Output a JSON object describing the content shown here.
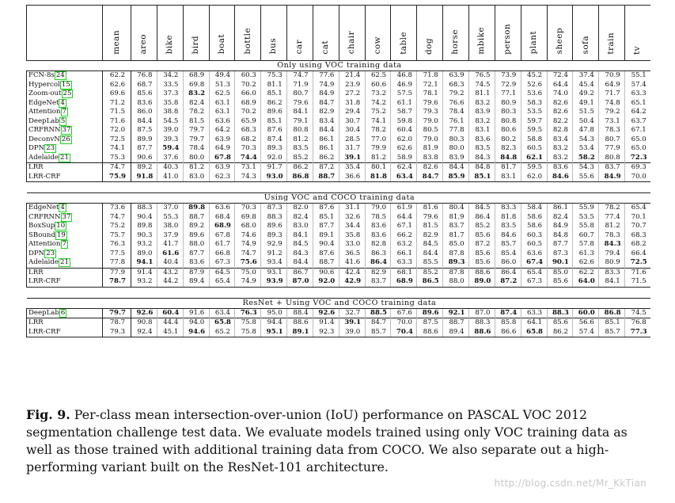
{
  "columns": [
    "mean",
    "areo",
    "bike",
    "bird",
    "boat",
    "bottle",
    "bus",
    "car",
    "cat",
    "chair",
    "cow",
    "table",
    "dog",
    "horse",
    "mbike",
    "person",
    "plant",
    "sheep",
    "sofa",
    "train",
    "tv"
  ],
  "sections": [
    {
      "title": "Only using VOC training data",
      "rows": [
        {
          "method": "FCN-8s",
          "cite": "24",
          "values": [
            "62.2",
            "76.8",
            "34.2",
            "68.9",
            "49.4",
            "60.3",
            "75.3",
            "74.7",
            "77.6",
            "21.4",
            "62.5",
            "46.8",
            "71.8",
            "63.9",
            "76.5",
            "73.9",
            "45.2",
            "72.4",
            "37.4",
            "70.9",
            "55.1"
          ],
          "bold": []
        },
        {
          "method": "Hypercol",
          "cite": "15",
          "values": [
            "62.6",
            "68.7",
            "33.5",
            "69.8",
            "51.3",
            "70.2",
            "81.1",
            "71.9",
            "74.9",
            "23.9",
            "60.6",
            "46.9",
            "72.1",
            "68.3",
            "74.5",
            "72.9",
            "52.6",
            "64.4",
            "45.4",
            "64.9",
            "57.4"
          ],
          "bold": []
        },
        {
          "method": "Zoom-out",
          "cite": "25",
          "values": [
            "69.6",
            "85.6",
            "37.3",
            "83.2",
            "62.5",
            "66.0",
            "85.1",
            "80.7",
            "84.9",
            "27.2",
            "73.2",
            "57.5",
            "78.1",
            "79.2",
            "81.1",
            "77.1",
            "53.6",
            "74.0",
            "49.2",
            "71.7",
            "63.3"
          ],
          "bold": [
            3
          ]
        },
        {
          "method": "EdgeNet",
          "cite": "4",
          "values": [
            "71.2",
            "83.6",
            "35.8",
            "82.4",
            "63.1",
            "68.9",
            "86.2",
            "79.6",
            "84.7",
            "31.8",
            "74.2",
            "61.1",
            "79.6",
            "76.6",
            "83.2",
            "80.9",
            "58.3",
            "82.6",
            "49.1",
            "74.8",
            "65.1"
          ],
          "bold": []
        },
        {
          "method": "Attention",
          "cite": "7",
          "values": [
            "71.5",
            "86.0",
            "38.8",
            "78.2",
            "63.1",
            "70.2",
            "89.6",
            "84.1",
            "82.9",
            "29.4",
            "75.2",
            "58.7",
            "79.3",
            "78.4",
            "83.9",
            "80.3",
            "53.5",
            "82.6",
            "51.5",
            "79.2",
            "64.2"
          ],
          "bold": []
        },
        {
          "method": "DeepLab",
          "cite": "5",
          "values": [
            "71.6",
            "84.4",
            "54.5",
            "81.5",
            "63.6",
            "65.9",
            "85.1",
            "79.1",
            "83.4",
            "30.7",
            "74.1",
            "59.8",
            "79.0",
            "76.1",
            "83.2",
            "80.8",
            "59.7",
            "82.2",
            "50.4",
            "73.1",
            "63.7"
          ],
          "bold": []
        },
        {
          "method": "CRFRNN",
          "cite": "37",
          "values": [
            "72.0",
            "87.5",
            "39.0",
            "79.7",
            "64.2",
            "68.3",
            "87.6",
            "80.8",
            "84.4",
            "30.4",
            "78.2",
            "60.4",
            "80.5",
            "77.8",
            "83.1",
            "80.6",
            "59.5",
            "82.8",
            "47.8",
            "78.3",
            "67.1"
          ],
          "bold": []
        },
        {
          "method": "DeconvN",
          "cite": "26",
          "values": [
            "72.5",
            "89.9",
            "39.3",
            "79.7",
            "63.9",
            "68.2",
            "87.4",
            "81.2",
            "86.1",
            "28.5",
            "77.0",
            "62.0",
            "79.0",
            "80.3",
            "83.6",
            "80.2",
            "58.8",
            "83.4",
            "54.3",
            "80.7",
            "65.0"
          ],
          "bold": []
        },
        {
          "method": "DPN",
          "cite": "23",
          "values": [
            "74.1",
            "87.7",
            "59.4",
            "78.4",
            "64.9",
            "70.3",
            "89.3",
            "83.5",
            "86.1",
            "31.7",
            "79.9",
            "62.6",
            "81.9",
            "80.0",
            "83.5",
            "82.3",
            "60.5",
            "83.2",
            "53.4",
            "77.9",
            "65.0"
          ],
          "bold": [
            2
          ]
        },
        {
          "method": "Adelaide",
          "cite": "21",
          "values": [
            "75.3",
            "90.6",
            "37.6",
            "80.0",
            "67.8",
            "74.4",
            "92.0",
            "85.2",
            "86.2",
            "39.1",
            "81.2",
            "58.9",
            "83.8",
            "83.9",
            "84.3",
            "84.8",
            "62.1",
            "83.2",
            "58.2",
            "80.8",
            "72.3"
          ],
          "bold": [
            4,
            5,
            9,
            15,
            16,
            18,
            20
          ]
        },
        {
          "method": "LRR",
          "cite": "",
          "values": [
            "74.7",
            "89.2",
            "40.3",
            "81.2",
            "63.9",
            "73.1",
            "91.7",
            "86.2",
            "87.2",
            "35.4",
            "80.1",
            "62.4",
            "82.6",
            "84.4",
            "84.8",
            "81.7",
            "59.5",
            "83.6",
            "54.3",
            "83.7",
            "69.3"
          ],
          "bold": []
        },
        {
          "method": "LRR-CRF",
          "cite": "",
          "values": [
            "75.9",
            "91.8",
            "41.0",
            "83.0",
            "62.3",
            "74.3",
            "93.0",
            "86.8",
            "88.7",
            "36.6",
            "81.8",
            "63.4",
            "84.7",
            "85.9",
            "85.1",
            "83.1",
            "62.0",
            "84.6",
            "55.6",
            "84.9",
            "70.0"
          ],
          "bold": [
            0,
            1,
            6,
            7,
            8,
            10,
            11,
            12,
            13,
            14,
            17,
            19
          ]
        }
      ]
    },
    {
      "title": "Using VOC and COCO training data",
      "rows": [
        {
          "method": "EdgeNet",
          "cite": "4",
          "values": [
            "73.6",
            "88.3",
            "37.0",
            "89.8",
            "63.6",
            "70.3",
            "87.3",
            "82.0",
            "87.6",
            "31.1",
            "79.0",
            "61.9",
            "81.6",
            "80.4",
            "84.5",
            "83.3",
            "58.4",
            "86.1",
            "55.9",
            "78.2",
            "65.4"
          ],
          "bold": [
            3
          ]
        },
        {
          "method": "CRFRNN",
          "cite": "37",
          "values": [
            "74.7",
            "90.4",
            "55.3",
            "88.7",
            "68.4",
            "69.8",
            "88.3",
            "82.4",
            "85.1",
            "32.6",
            "78.5",
            "64.4",
            "79.6",
            "81.9",
            "86.4",
            "81.8",
            "58.6",
            "82.4",
            "53.5",
            "77.4",
            "70.1"
          ],
          "bold": []
        },
        {
          "method": "BoxSup",
          "cite": "10",
          "values": [
            "75.2",
            "89.8",
            "38.0",
            "89.2",
            "68.9",
            "68.0",
            "89.6",
            "83.0",
            "87.7",
            "34.4",
            "83.6",
            "67.1",
            "81.5",
            "83.7",
            "85.2",
            "83.5",
            "58.6",
            "84.9",
            "55.8",
            "81.2",
            "70.7"
          ],
          "bold": [
            4
          ]
        },
        {
          "method": "SBound",
          "cite": "19",
          "values": [
            "75.7",
            "90.3",
            "37.9",
            "89.6",
            "67.8",
            "74.6",
            "89.3",
            "84.1",
            "89.1",
            "35.8",
            "83.6",
            "66.2",
            "82.9",
            "81.7",
            "85.6",
            "84.6",
            "60.3",
            "84.8",
            "60.7",
            "78.3",
            "68.3"
          ],
          "bold": []
        },
        {
          "method": "Attention",
          "cite": "7",
          "values": [
            "76.3",
            "93.2",
            "41.7",
            "88.0",
            "61.7",
            "74.9",
            "92.9",
            "84.5",
            "90.4",
            "33.0",
            "82.8",
            "63.2",
            "84.5",
            "85.0",
            "87.2",
            "85.7",
            "60.5",
            "87.7",
            "57.8",
            "84.3",
            "68.2"
          ],
          "bold": [
            19
          ]
        },
        {
          "method": "DPN",
          "cite": "23",
          "values": [
            "77.5",
            "89.0",
            "61.6",
            "87.7",
            "66.8",
            "74.7",
            "91.2",
            "84.3",
            "87.6",
            "36.5",
            "86.3",
            "66.1",
            "84.4",
            "87.8",
            "85.6",
            "85.4",
            "63.6",
            "87.3",
            "61.3",
            "79.4",
            "66.4"
          ],
          "bold": [
            2
          ]
        },
        {
          "method": "Adelaide",
          "cite": "21",
          "values": [
            "77.8",
            "94.1",
            "40.4",
            "83.6",
            "67.3",
            "75.6",
            "93.4",
            "84.4",
            "88.7",
            "41.6",
            "86.4",
            "63.3",
            "85.5",
            "89.3",
            "85.6",
            "86.0",
            "67.4",
            "90.1",
            "62.6",
            "80.9",
            "72.5"
          ],
          "bold": [
            1,
            5,
            10,
            13,
            16,
            17,
            20
          ]
        },
        {
          "method": "LRR",
          "cite": "",
          "values": [
            "77.9",
            "91.4",
            "43.2",
            "87.9",
            "64.5",
            "75.0",
            "93.1",
            "86.7",
            "90.6",
            "42.4",
            "82.9",
            "68.1",
            "85.2",
            "87.8",
            "88.6",
            "86.4",
            "65.4",
            "85.0",
            "62.2",
            "83.3",
            "71.6"
          ],
          "bold": []
        },
        {
          "method": "LRR-CRF",
          "cite": "",
          "values": [
            "78.7",
            "93.2",
            "44.2",
            "89.4",
            "65.4",
            "74.9",
            "93.9",
            "87.0",
            "92.0",
            "42.9",
            "83.7",
            "68.9",
            "86.5",
            "88.0",
            "89.0",
            "87.2",
            "67.3",
            "85.6",
            "64.0",
            "84.1",
            "71.5"
          ],
          "bold": [
            0,
            6,
            7,
            8,
            9,
            11,
            12,
            14,
            15,
            18
          ]
        }
      ]
    },
    {
      "title": "ResNet + Using VOC and COCO training data",
      "rows": [
        {
          "method": "DeepLab",
          "cite": "6",
          "values": [
            "79.7",
            "92.6",
            "60.4",
            "91.6",
            "63.4",
            "76.3",
            "95.0",
            "88.4",
            "92.6",
            "32.7",
            "88.5",
            "67.6",
            "89.6",
            "92.1",
            "87.0",
            "87.4",
            "63.3",
            "88.3",
            "60.0",
            "86.8",
            "74.5"
          ],
          "bold": [
            0,
            1,
            2,
            5,
            8,
            10,
            12,
            13,
            15,
            17,
            18,
            19
          ]
        },
        {
          "method": "LRR",
          "cite": "",
          "values": [
            "78.7",
            "90.8",
            "44.4",
            "94.0",
            "65.8",
            "75.8",
            "94.4",
            "88.6",
            "91.4",
            "39.1",
            "84.7",
            "70.0",
            "87.5",
            "88.7",
            "88.3",
            "85.8",
            "64.1",
            "85.6",
            "56.6",
            "85.1",
            "76.8"
          ],
          "bold": [
            4,
            9
          ]
        },
        {
          "method": "LRR-CRF",
          "cite": "",
          "values": [
            "79.3",
            "92.4",
            "45.1",
            "94.6",
            "65.2",
            "75.8",
            "95.1",
            "89.1",
            "92.3",
            "39.0",
            "85.7",
            "70.4",
            "88.6",
            "89.4",
            "88.6",
            "86.6",
            "65.8",
            "86.2",
            "57.4",
            "85.7",
            "77.3"
          ],
          "bold": [
            3,
            6,
            7,
            11,
            14,
            16,
            20
          ]
        }
      ]
    }
  ],
  "caption": {
    "label": "Fig. 9.",
    "text": "Per-class mean intersection-over-union (IoU) performance on PASCAL VOC 2012 segmentation challenge test data. We evaluate models trained using only VOC training data as well as those trained with additional training data from COCO. We also separate out a high-performing variant built on the ResNet-101 architecture."
  },
  "watermark": "http://blog.csdn.net/Mr_KkTian"
}
